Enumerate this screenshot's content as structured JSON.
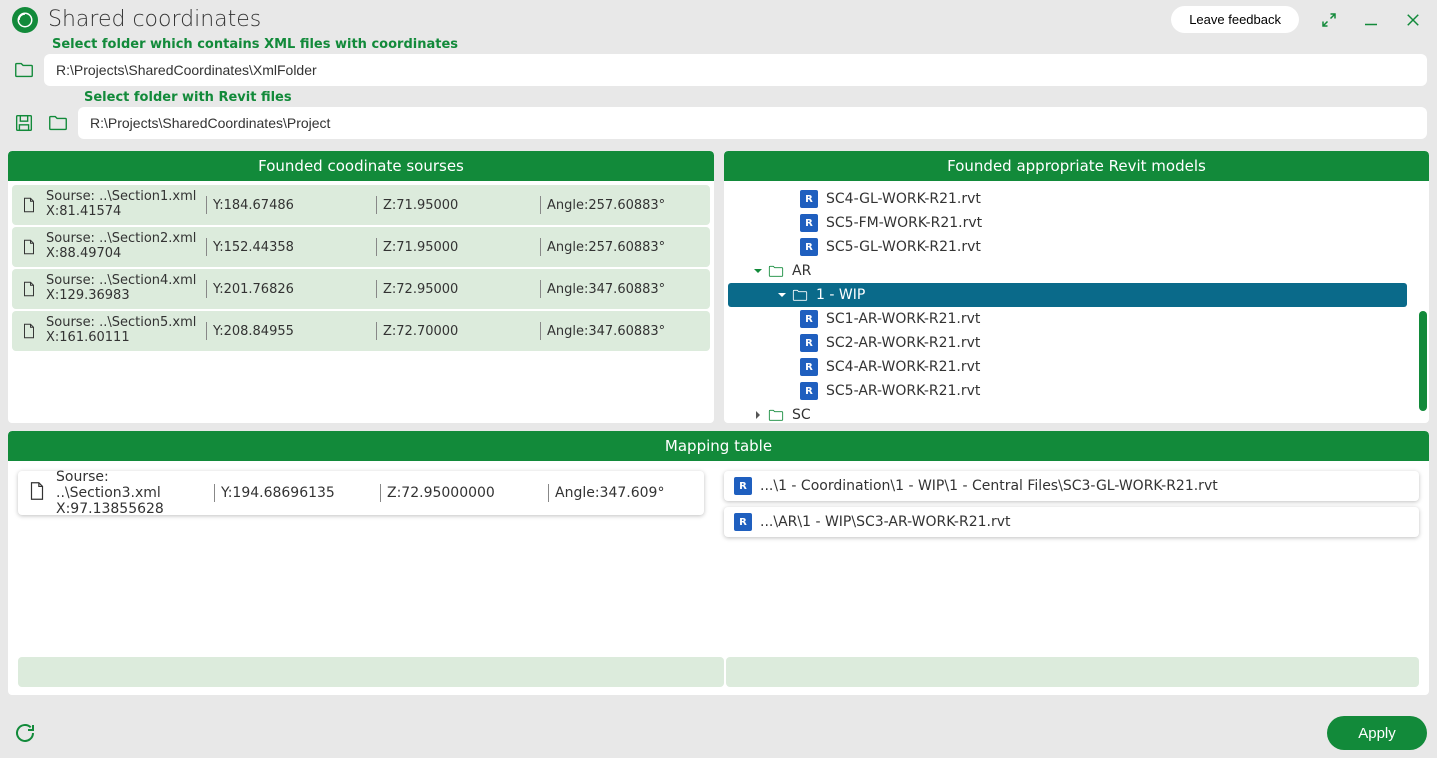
{
  "colors": {
    "accent": "#128a3a",
    "row_bg": "#dcebdc",
    "tree_selected": "#0a6a8a",
    "rvt_icon": "#1f5fbf"
  },
  "window": {
    "title": "Shared coordinates",
    "feedback_label": "Leave feedback"
  },
  "xml_folder": {
    "label": "Select folder which contains XML files with coordinates",
    "value": "R:\\Projects\\SharedCoordinates\\XmlFolder"
  },
  "revit_folder": {
    "label": "Select folder with Revit files",
    "value": "R:\\Projects\\SharedCoordinates\\Project"
  },
  "sources_panel": {
    "header": "Founded coodinate sourses",
    "rows": [
      {
        "src": "Sourse: ..\\Section1.xml",
        "x": "X:81.41574",
        "y": "Y:184.67486",
        "z": "Z:71.95000",
        "angle": "Angle:257.60883°"
      },
      {
        "src": "Sourse: ..\\Section2.xml",
        "x": "X:88.49704",
        "y": "Y:152.44358",
        "z": "Z:71.95000",
        "angle": "Angle:257.60883°"
      },
      {
        "src": "Sourse: ..\\Section4.xml",
        "x": "X:129.36983",
        "y": "Y:201.76826",
        "z": "Z:72.95000",
        "angle": "Angle:347.60883°"
      },
      {
        "src": "Sourse: ..\\Section5.xml",
        "x": "X:161.60111",
        "y": "Y:208.84955",
        "z": "Z:72.70000",
        "angle": "Angle:347.60883°"
      }
    ]
  },
  "models_panel": {
    "header": "Founded appropriate Revit models",
    "visible_files_top": [
      "SC4-GL-WORK-R21.rvt",
      "SC5-FM-WORK-R21.rvt",
      "SC5-GL-WORK-R21.rvt"
    ],
    "ar_folder": {
      "name": "AR",
      "expanded": true
    },
    "wip_folder": {
      "name": "1 - WIP",
      "expanded": true,
      "selected": true
    },
    "wip_files": [
      "SC1-AR-WORK-R21.rvt",
      "SC2-AR-WORK-R21.rvt",
      "SC4-AR-WORK-R21.rvt",
      "SC5-AR-WORK-R21.rvt"
    ],
    "sc_folder": {
      "name": "SC",
      "expanded": false
    }
  },
  "mapping": {
    "header": "Mapping table",
    "source": {
      "src": "Sourse: ..\\Section3.xml",
      "x": "X:97.13855628",
      "y": "Y:194.68696135",
      "z": "Z:72.95000000",
      "angle": "Angle:347.609°"
    },
    "targets": [
      "...\\1 - Coordination\\1 - WIP\\1 - Central Files\\SC3-GL-WORK-R21.rvt",
      "...\\AR\\1 - WIP\\SC3-AR-WORK-R21.rvt"
    ]
  },
  "footer": {
    "apply_label": "Apply"
  }
}
